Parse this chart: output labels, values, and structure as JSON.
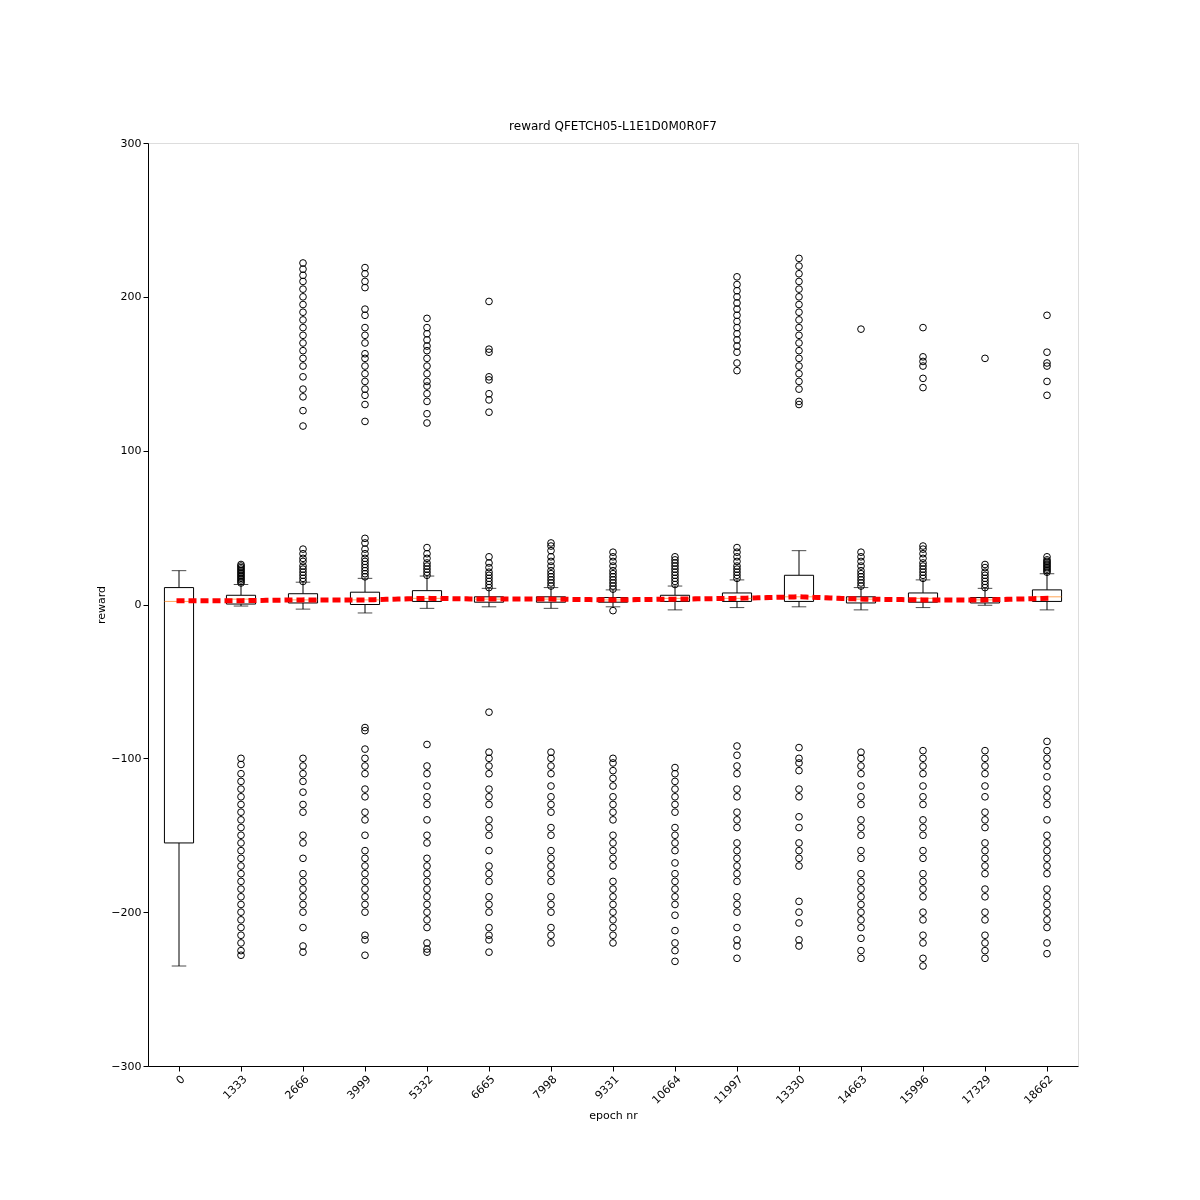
{
  "chart_data": {
    "type": "box",
    "title": "reward QFETCH05-L1E1D0M0R0F7",
    "xlabel": "epoch nr",
    "ylabel": "reward",
    "categories": [
      "0",
      "1333",
      "2666",
      "3999",
      "5332",
      "6665",
      "7998",
      "9331",
      "10664",
      "11997",
      "13330",
      "14663",
      "15996",
      "17329",
      "18662"
    ],
    "ylim": [
      -300,
      300
    ],
    "yticks": [
      -300,
      -200,
      -100,
      0,
      100,
      200,
      300
    ],
    "grid": false,
    "boxes": [
      {
        "low": -235,
        "q1": -155,
        "median": 2,
        "q3": 11,
        "high": 22
      },
      {
        "low": -1,
        "q1": 0.3,
        "median": 3.5,
        "q3": 6,
        "high": 13,
        "outliers": [
          14,
          15,
          16,
          17,
          18,
          19,
          20,
          21,
          22,
          23,
          24,
          25,
          26,
          -100,
          -104,
          -110,
          -115,
          -120,
          -125,
          -130,
          -135,
          -140,
          -145,
          -150,
          -155,
          -160,
          -165,
          -170,
          -175,
          -180,
          -185,
          -190,
          -195,
          -200,
          -205,
          -210,
          -215,
          -220,
          -225,
          -228
        ]
      },
      {
        "low": -3,
        "q1": 1,
        "median": 3,
        "q3": 7,
        "high": 14.5,
        "outliers": [
          15,
          17,
          19,
          21,
          23,
          25,
          28,
          30,
          33,
          36,
          116,
          126,
          135,
          140,
          148,
          155,
          160,
          165,
          170,
          175,
          180,
          185,
          190,
          195,
          200,
          205,
          210,
          214,
          218,
          222,
          -100,
          -105,
          -110,
          -115,
          -122,
          -130,
          -135,
          -150,
          -155,
          -165,
          -175,
          -180,
          -185,
          -190,
          -195,
          -200,
          -210,
          -222,
          -226
        ]
      },
      {
        "low": -5.5,
        "q1": 0,
        "median": 3,
        "q3": 8,
        "high": 17,
        "outliers": [
          18,
          20,
          22,
          24,
          26,
          28,
          30,
          33,
          36,
          40,
          43,
          119,
          130,
          136,
          140,
          145,
          150,
          155,
          160,
          163,
          170,
          175,
          180,
          188,
          192,
          206,
          210,
          215,
          219,
          -80,
          -82,
          -94,
          -100,
          -105,
          -110,
          -120,
          -125,
          -135,
          -140,
          -150,
          -160,
          -165,
          -170,
          -175,
          -180,
          -185,
          -190,
          -195,
          -200,
          -215,
          -218,
          -228
        ]
      },
      {
        "low": -2.5,
        "q1": 2,
        "median": 4,
        "q3": 9,
        "high": 18.5,
        "outliers": [
          19,
          21,
          23,
          25,
          27,
          30,
          33,
          37,
          118,
          124,
          132,
          137,
          142,
          145,
          150,
          155,
          160,
          165,
          168,
          172,
          176,
          180,
          186,
          -91,
          -105,
          -110,
          -118,
          -125,
          -130,
          -140,
          -150,
          -155,
          -165,
          -170,
          -175,
          -180,
          -185,
          -190,
          -195,
          -200,
          -205,
          -210,
          -220,
          -224,
          -226
        ]
      },
      {
        "low": -1.5,
        "q1": 1.5,
        "median": 3.5,
        "q3": 5,
        "high": 10.5,
        "outliers": [
          11,
          13,
          15,
          17,
          19,
          21,
          24,
          27,
          31,
          125,
          133,
          137,
          146,
          148,
          164,
          166,
          197,
          -70,
          -96,
          -100,
          -105,
          -110,
          -120,
          -125,
          -130,
          -140,
          -145,
          -150,
          -160,
          -170,
          -175,
          -180,
          -190,
          -195,
          -200,
          -210,
          -215,
          -218,
          -226
        ]
      },
      {
        "low": -2.5,
        "q1": 1.5,
        "median": 3.5,
        "q3": 5,
        "high": 11,
        "outliers": [
          12,
          14,
          16,
          18,
          20,
          22,
          25,
          28,
          31,
          35,
          38,
          40,
          -96,
          -100,
          -105,
          -110,
          -118,
          -125,
          -130,
          -135,
          -145,
          -150,
          -160,
          -165,
          -170,
          -175,
          -180,
          -190,
          -195,
          -200,
          -210,
          -215,
          -220
        ]
      },
      {
        "low": -1.5,
        "q1": 1.5,
        "median": 3,
        "q3": 4.5,
        "high": 9.5,
        "outliers": [
          10,
          12,
          14,
          16,
          18,
          20,
          22,
          25,
          28,
          31,
          34,
          -4,
          -100,
          -103,
          -108,
          -113,
          -118,
          -125,
          -130,
          -135,
          -140,
          -150,
          -155,
          -160,
          -165,
          -170,
          -180,
          -185,
          -190,
          -195,
          -200,
          -205,
          -210,
          -215,
          -220
        ]
      },
      {
        "low": -3.5,
        "q1": 2,
        "median": 4,
        "q3": 6,
        "high": 12,
        "outliers": [
          13,
          15,
          17,
          19,
          21,
          23,
          25,
          27,
          29,
          31,
          -106,
          -110,
          -115,
          -120,
          -125,
          -130,
          -135,
          -145,
          -150,
          -155,
          -160,
          -168,
          -175,
          -180,
          -185,
          -190,
          -195,
          -202,
          -212,
          -220,
          -225,
          -232
        ]
      },
      {
        "low": -2,
        "q1": 2,
        "median": 4,
        "q3": 7.5,
        "high": 16,
        "outliers": [
          17,
          19,
          21,
          23,
          25,
          28,
          31,
          34,
          37,
          152,
          157,
          164,
          168,
          172,
          176,
          180,
          184,
          188,
          192,
          196,
          200,
          204,
          208,
          213,
          -92,
          -98,
          -105,
          -110,
          -120,
          -125,
          -135,
          -140,
          -145,
          -155,
          -160,
          -165,
          -170,
          -175,
          -180,
          -190,
          -195,
          -200,
          -210,
          -218,
          -222,
          -230
        ]
      },
      {
        "low": -1.5,
        "q1": 2,
        "median": 5,
        "q3": 19,
        "high": 35,
        "outliers": [
          130,
          132,
          140,
          145,
          150,
          155,
          160,
          165,
          170,
          175,
          180,
          185,
          190,
          195,
          200,
          205,
          210,
          215,
          220,
          225,
          -93,
          -100,
          -103,
          -108,
          -120,
          -125,
          -138,
          -145,
          -155,
          -160,
          -165,
          -170,
          -193,
          -200,
          -207,
          -218,
          -222
        ]
      },
      {
        "low": -3.5,
        "q1": 1,
        "median": 3.5,
        "q3": 5,
        "high": 11,
        "outliers": [
          12,
          14,
          16,
          18,
          20,
          22,
          25,
          28,
          31,
          34,
          179,
          -96,
          -100,
          -105,
          -110,
          -118,
          -125,
          -130,
          -140,
          -145,
          -150,
          -160,
          -165,
          -175,
          -180,
          -185,
          -190,
          -195,
          -200,
          -205,
          -210,
          -217,
          -225,
          -230
        ]
      },
      {
        "low": -2,
        "q1": 1.5,
        "median": 4,
        "q3": 7.5,
        "high": 16,
        "outliers": [
          17,
          19,
          21,
          23,
          25,
          27,
          30,
          33,
          36,
          38,
          141,
          147,
          155,
          158,
          161,
          180,
          -95,
          -100,
          -105,
          -110,
          -118,
          -125,
          -130,
          -140,
          -145,
          -150,
          -160,
          -165,
          -175,
          -180,
          -185,
          -190,
          -200,
          -205,
          -215,
          -220,
          -230,
          -235
        ]
      },
      {
        "low": -0.5,
        "q1": 1,
        "median": 3,
        "q3": 4.5,
        "high": 10.5,
        "outliers": [
          11,
          13,
          15,
          17,
          19,
          21,
          24,
          26,
          160,
          -95,
          -100,
          -105,
          -110,
          -118,
          -125,
          -135,
          -140,
          -145,
          -155,
          -160,
          -165,
          -170,
          -175,
          -185,
          -190,
          -200,
          -205,
          -215,
          -220,
          -225,
          -230
        ]
      },
      {
        "low": -3.5,
        "q1": 2,
        "median": 5,
        "q3": 9.5,
        "high": 20,
        "outliers": [
          21,
          22,
          23,
          24,
          25,
          26,
          27,
          28,
          29,
          31,
          136,
          145,
          155,
          157,
          164,
          188,
          -89,
          -95,
          -100,
          -105,
          -112,
          -120,
          -125,
          -130,
          -140,
          -150,
          -155,
          -160,
          -165,
          -170,
          -175,
          -185,
          -190,
          -195,
          -200,
          -205,
          -210,
          -220,
          -227
        ]
      }
    ],
    "series": [
      {
        "type": "line",
        "color": "#ff0000",
        "line_style": "dotted",
        "values": [
          2.5,
          2.5,
          3,
          3,
          4,
          3.5,
          3.5,
          3,
          3.5,
          4,
          5,
          3.5,
          3,
          3,
          4
        ]
      }
    ]
  }
}
